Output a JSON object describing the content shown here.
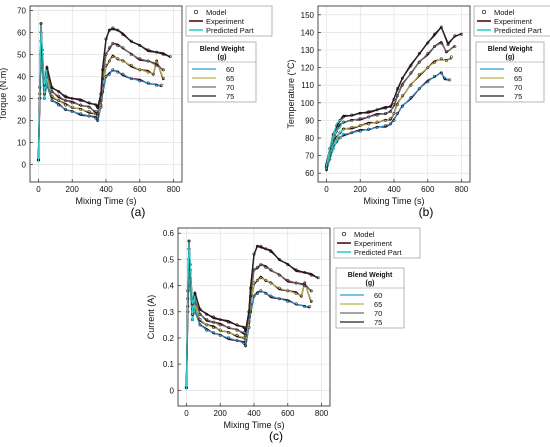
{
  "colors": {
    "60": "#2a9ad8",
    "65": "#b8b24a",
    "70": "#6f6f6f",
    "75": "#222222",
    "experiment": "#4a0f22",
    "predicted": "#2fd0cf",
    "model_marker": "#000000",
    "axes": "#222222",
    "grid": "#dcdcdc"
  },
  "legend_labels": {
    "model": "Model",
    "experiment": "Experiment",
    "predicted": "Predicted Part",
    "blend_title": "Blend Weight",
    "blend_unit": "(g)"
  },
  "chart_data": [
    {
      "id": "torque",
      "panel_label": "(a)",
      "type": "line",
      "xlabel": "Mixing Time (s)",
      "ylabel": "Torque (N.m)",
      "xlim": [
        -50,
        850
      ],
      "ylim": [
        -8,
        72
      ],
      "xticks": [
        0,
        200,
        400,
        600,
        800
      ],
      "yticks": [
        0,
        10,
        20,
        30,
        40,
        50,
        60,
        70
      ],
      "grid": true,
      "legend_position": "right",
      "series": [
        {
          "name": "60",
          "x": [
            0,
            8,
            15,
            22,
            35,
            50,
            80,
            120,
            160,
            200,
            250,
            300,
            340,
            350,
            370,
            380,
            400,
            420,
            440,
            470,
            500,
            550,
            600,
            650,
            700,
            730
          ],
          "y": [
            2,
            30,
            50,
            44,
            30,
            37,
            29,
            27,
            25,
            24,
            23,
            22,
            21,
            20,
            26,
            33,
            40,
            41,
            43,
            42,
            41,
            39,
            38,
            37,
            36,
            36
          ]
        },
        {
          "name": "65",
          "x": [
            0,
            8,
            15,
            22,
            35,
            50,
            80,
            120,
            160,
            200,
            250,
            300,
            340,
            350,
            370,
            380,
            400,
            420,
            440,
            470,
            500,
            550,
            600,
            650,
            680,
            700,
            740
          ],
          "y": [
            2,
            30,
            56,
            47,
            32,
            40,
            31,
            29,
            27,
            26,
            25,
            24,
            23,
            22,
            27,
            36,
            45,
            47,
            49,
            48,
            47,
            45,
            43,
            42,
            41,
            47,
            39
          ]
        },
        {
          "name": "70",
          "x": [
            0,
            8,
            15,
            22,
            35,
            50,
            80,
            120,
            160,
            200,
            250,
            300,
            340,
            350,
            370,
            380,
            400,
            420,
            440,
            470,
            500,
            550,
            600,
            650,
            700,
            740
          ],
          "y": [
            2,
            32,
            60,
            50,
            34,
            42,
            33,
            31,
            29,
            28,
            27,
            26,
            24,
            23,
            29,
            39,
            50,
            53,
            55,
            54,
            53,
            50,
            48,
            47,
            45,
            43
          ]
        },
        {
          "name": "75",
          "x": [
            0,
            8,
            15,
            22,
            35,
            50,
            80,
            120,
            160,
            200,
            250,
            300,
            340,
            350,
            370,
            380,
            400,
            420,
            440,
            470,
            500,
            550,
            600,
            650,
            700,
            740,
            780
          ],
          "y": [
            2,
            35,
            64,
            52,
            36,
            44,
            35,
            33,
            31,
            30,
            29,
            28,
            27,
            26,
            32,
            43,
            57,
            61,
            62,
            61,
            59,
            56,
            54,
            52,
            51,
            50,
            49
          ]
        }
      ]
    },
    {
      "id": "temperature",
      "panel_label": "(b)",
      "type": "line",
      "xlabel": "Mixing Time (s)",
      "ylabel": "Temperature (°C)",
      "xlim": [
        -50,
        850
      ],
      "ylim": [
        55,
        155
      ],
      "xticks": [
        0,
        200,
        400,
        600,
        800
      ],
      "yticks": [
        60,
        70,
        80,
        90,
        100,
        110,
        120,
        130,
        140,
        150
      ],
      "grid": true,
      "legend_position": "right",
      "series": [
        {
          "name": "60",
          "x": [
            0,
            20,
            40,
            60,
            80,
            100,
            150,
            200,
            250,
            300,
            350,
            380,
            400,
            420,
            450,
            500,
            550,
            600,
            640,
            680,
            700,
            730
          ],
          "y": [
            62,
            68,
            74,
            78,
            80,
            82,
            83,
            84,
            85,
            86,
            87,
            88,
            90,
            94,
            98,
            103,
            108,
            112,
            115,
            117,
            114,
            113
          ]
        },
        {
          "name": "65",
          "x": [
            0,
            20,
            40,
            60,
            80,
            100,
            150,
            200,
            250,
            300,
            350,
            380,
            400,
            420,
            450,
            500,
            550,
            600,
            640,
            680,
            710,
            740
          ],
          "y": [
            63,
            70,
            76,
            80,
            83,
            85,
            86,
            87,
            88,
            89,
            90,
            91,
            94,
            99,
            104,
            110,
            116,
            120,
            123,
            125,
            124,
            126
          ]
        },
        {
          "name": "70",
          "x": [
            0,
            20,
            40,
            60,
            80,
            100,
            150,
            200,
            250,
            300,
            350,
            380,
            400,
            420,
            450,
            500,
            550,
            600,
            640,
            680,
            710,
            760
          ],
          "y": [
            64,
            72,
            79,
            84,
            87,
            89,
            90,
            91,
            92,
            93,
            94,
            95,
            99,
            104,
            110,
            117,
            123,
            128,
            132,
            134,
            129,
            132
          ]
        },
        {
          "name": "75",
          "x": [
            0,
            20,
            40,
            60,
            80,
            100,
            150,
            200,
            250,
            300,
            350,
            380,
            400,
            420,
            450,
            500,
            550,
            600,
            640,
            680,
            720,
            760,
            800
          ],
          "y": [
            65,
            74,
            82,
            87,
            90,
            92,
            93,
            94,
            95,
            96,
            97,
            98,
            102,
            108,
            114,
            121,
            128,
            134,
            139,
            143,
            133,
            138,
            139
          ]
        }
      ]
    },
    {
      "id": "current",
      "panel_label": "(c)",
      "type": "line",
      "xlabel": "Mixing Time (s)",
      "ylabel": "Current (A)",
      "xlim": [
        -50,
        850
      ],
      "ylim": [
        -0.06,
        0.62
      ],
      "xticks": [
        0,
        200,
        400,
        600,
        800
      ],
      "yticks": [
        0,
        0.1,
        0.2,
        0.3,
        0.4,
        0.5,
        0.6
      ],
      "grid": true,
      "legend_position": "right",
      "series": [
        {
          "name": "60",
          "x": [
            0,
            8,
            15,
            22,
            35,
            50,
            80,
            120,
            160,
            200,
            250,
            300,
            340,
            350,
            370,
            380,
            400,
            420,
            440,
            470,
            500,
            550,
            600,
            650,
            700,
            730
          ],
          "y": [
            0.01,
            0.3,
            0.45,
            0.4,
            0.27,
            0.31,
            0.25,
            0.23,
            0.22,
            0.21,
            0.2,
            0.19,
            0.18,
            0.17,
            0.24,
            0.3,
            0.36,
            0.37,
            0.38,
            0.37,
            0.36,
            0.35,
            0.34,
            0.33,
            0.32,
            0.32
          ]
        },
        {
          "name": "65",
          "x": [
            0,
            8,
            15,
            22,
            35,
            50,
            80,
            120,
            160,
            200,
            250,
            300,
            340,
            350,
            370,
            380,
            400,
            420,
            440,
            470,
            500,
            550,
            600,
            650,
            680,
            700,
            740
          ],
          "y": [
            0.01,
            0.32,
            0.5,
            0.43,
            0.29,
            0.33,
            0.27,
            0.25,
            0.24,
            0.23,
            0.22,
            0.21,
            0.2,
            0.19,
            0.26,
            0.33,
            0.41,
            0.42,
            0.43,
            0.42,
            0.41,
            0.39,
            0.38,
            0.37,
            0.36,
            0.41,
            0.34
          ]
        },
        {
          "name": "70",
          "x": [
            0,
            8,
            15,
            22,
            35,
            50,
            80,
            120,
            160,
            200,
            250,
            300,
            340,
            350,
            370,
            380,
            400,
            420,
            440,
            470,
            500,
            550,
            600,
            650,
            700,
            740
          ],
          "y": [
            0.01,
            0.35,
            0.54,
            0.46,
            0.31,
            0.35,
            0.29,
            0.27,
            0.26,
            0.25,
            0.24,
            0.23,
            0.22,
            0.21,
            0.28,
            0.36,
            0.46,
            0.47,
            0.48,
            0.47,
            0.46,
            0.44,
            0.42,
            0.41,
            0.4,
            0.38
          ]
        },
        {
          "name": "75",
          "x": [
            0,
            8,
            15,
            22,
            35,
            50,
            80,
            120,
            160,
            200,
            250,
            300,
            340,
            350,
            370,
            380,
            400,
            420,
            440,
            470,
            500,
            550,
            600,
            650,
            700,
            740,
            780
          ],
          "y": [
            0.01,
            0.38,
            0.57,
            0.48,
            0.33,
            0.37,
            0.31,
            0.29,
            0.28,
            0.27,
            0.26,
            0.25,
            0.24,
            0.23,
            0.3,
            0.39,
            0.52,
            0.55,
            0.55,
            0.54,
            0.53,
            0.5,
            0.48,
            0.46,
            0.45,
            0.44,
            0.43
          ]
        }
      ]
    }
  ]
}
